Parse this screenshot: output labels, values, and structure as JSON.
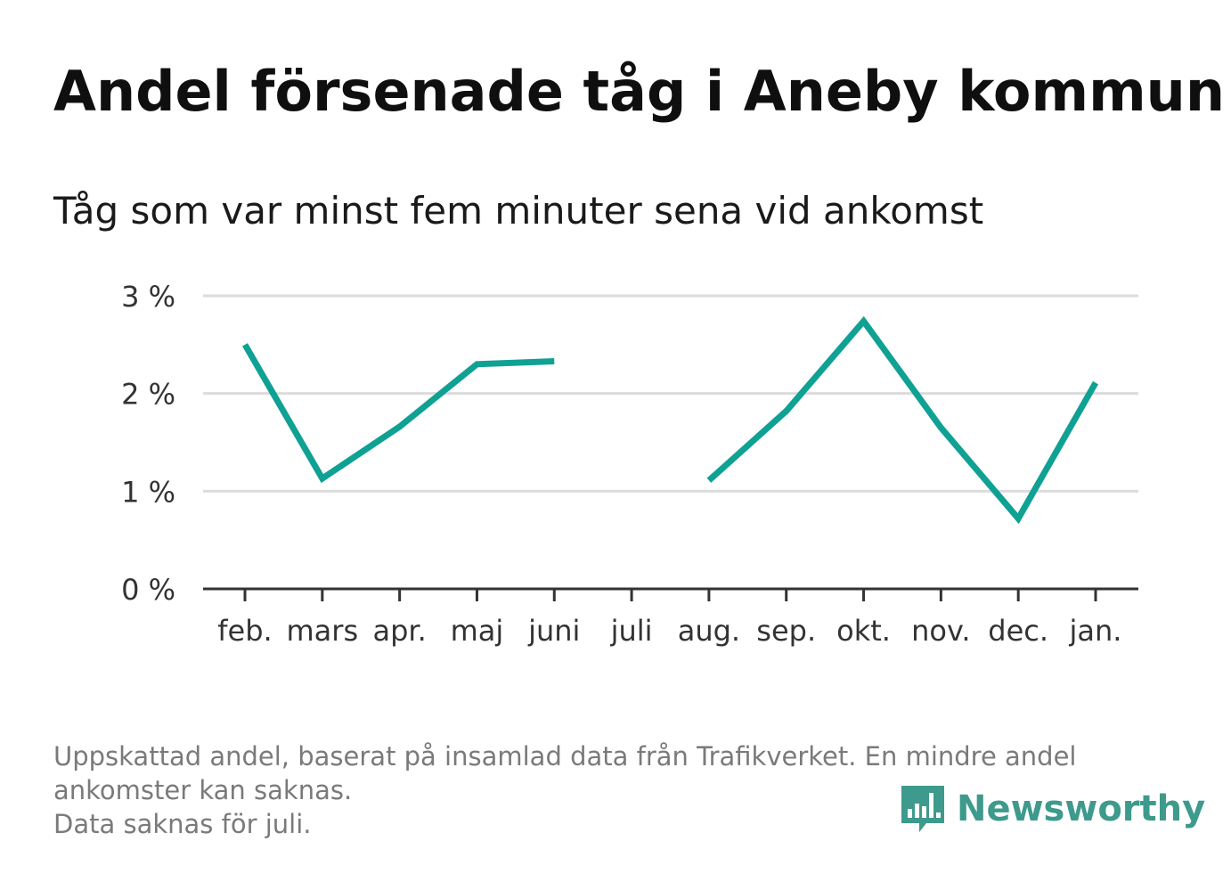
{
  "title": "Andel försenade tåg i Aneby kommun",
  "subtitle": "Tåg som var minst fem minuter sena vid ankomst",
  "footer": {
    "line1": "Uppskattad andel, baserat på insamlad data från Trafikverket. En mindre andel",
    "line2": "ankomster kan saknas.",
    "line3": "Data saknas för juli."
  },
  "logo": {
    "text": "Newsworthy",
    "icon": "bar-chart-speech-bubble-icon",
    "color": "#3d9a8c"
  },
  "colors": {
    "line": "#0fa193",
    "grid": "#dcdcdc",
    "axis": "#333333",
    "tick_text": "#333333"
  },
  "chart_data": {
    "type": "line",
    "categories": [
      "feb.",
      "mars",
      "apr.",
      "maj",
      "juni",
      "juli",
      "aug.",
      "sep.",
      "okt.",
      "nov.",
      "dec.",
      "jan."
    ],
    "series": [
      {
        "values": [
          2.5,
          1.13,
          1.66,
          2.3,
          2.33,
          null,
          1.11,
          1.82,
          2.74,
          1.65,
          0.72,
          2.11
        ]
      }
    ],
    "ylim": [
      0,
      3
    ],
    "yticks": [
      0,
      1,
      2,
      3
    ],
    "ytick_labels": [
      "0 %",
      "1 %",
      "2 %",
      "3 %"
    ],
    "grid": true
  }
}
